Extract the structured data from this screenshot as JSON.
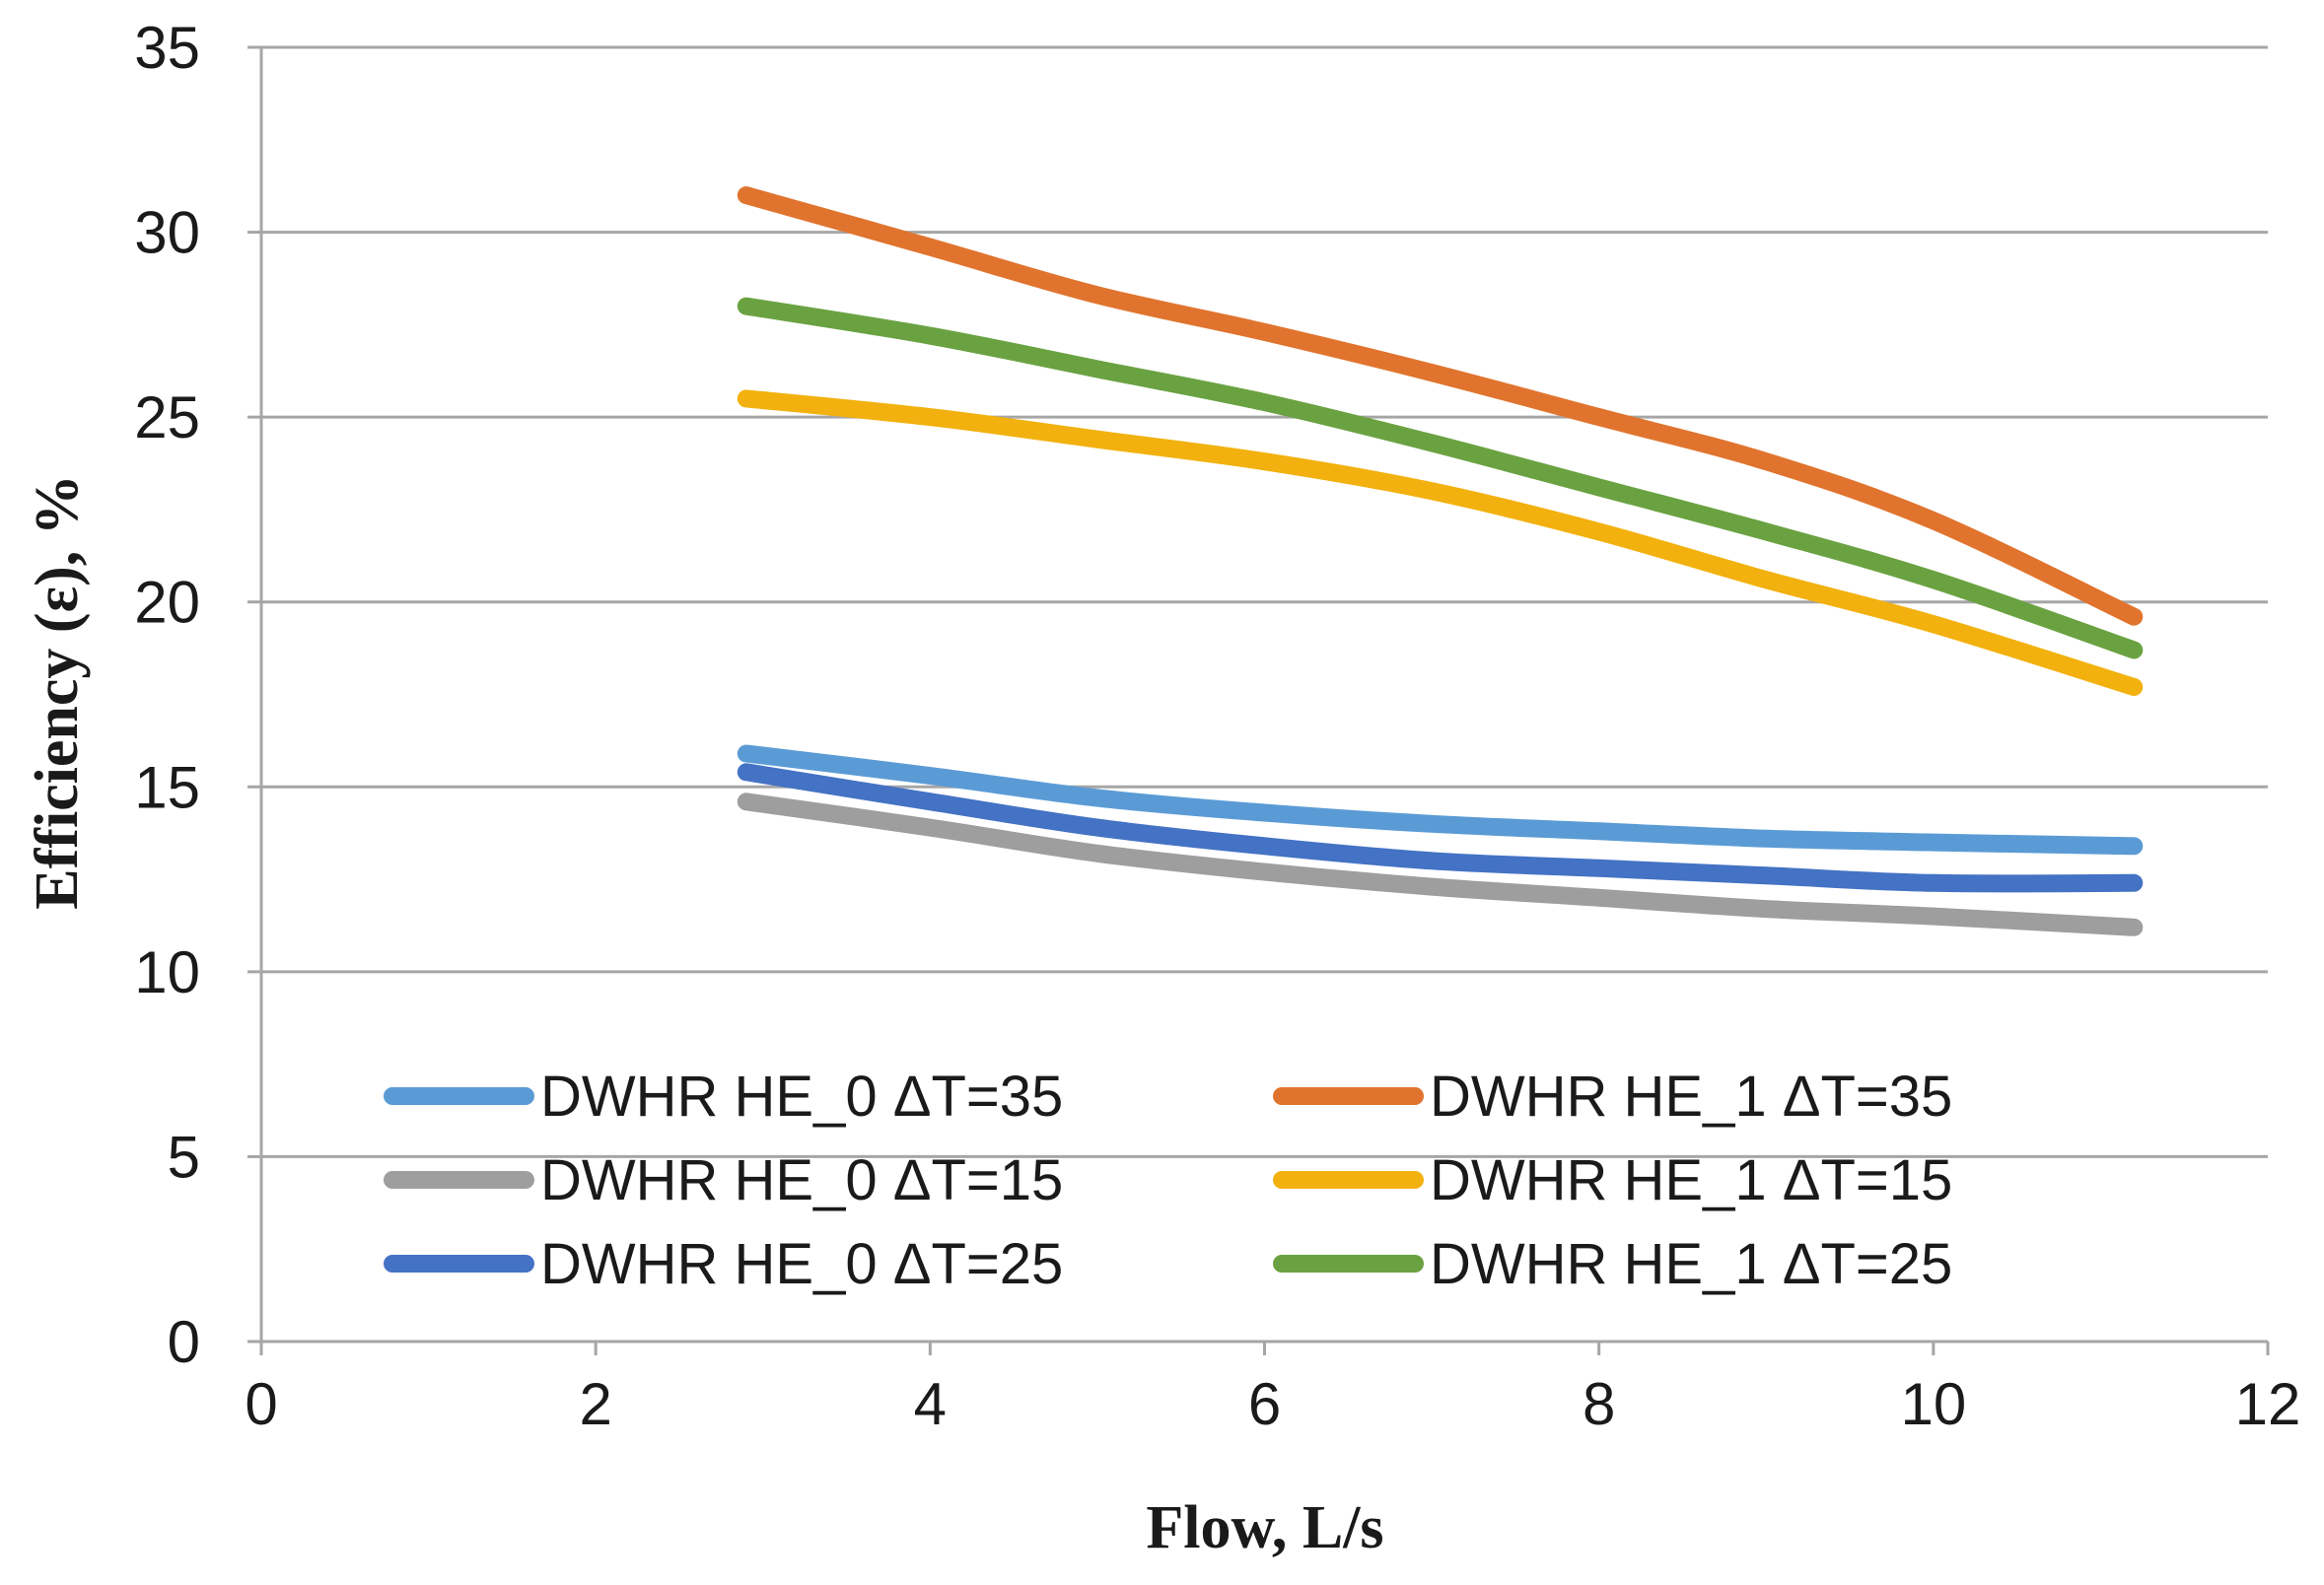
{
  "chart_data": {
    "type": "line",
    "title": "",
    "xlabel": "Flow, L/s",
    "ylabel": "Efficiency (ε), %",
    "xlim": [
      0,
      12
    ],
    "ylim": [
      0,
      35
    ],
    "xticks": [
      0,
      2,
      4,
      6,
      8,
      10,
      12
    ],
    "yticks": [
      0,
      5,
      10,
      15,
      20,
      25,
      30,
      35
    ],
    "grid": "horizontal",
    "legend_position": "bottom-inside",
    "x": [
      2.9,
      4.0,
      5.0,
      6.0,
      7.0,
      8.0,
      9.0,
      10.0,
      11.2
    ],
    "series": [
      {
        "name": "DWHR HE_0 ΔT=35",
        "color": "#5b9bd5",
        "values": [
          15.9,
          15.3,
          14.7,
          14.3,
          14.0,
          13.8,
          13.6,
          13.5,
          13.4
        ]
      },
      {
        "name": "DWHR HE_1 ΔT=35",
        "color": "#e0742e",
        "values": [
          31.0,
          29.6,
          28.3,
          27.3,
          26.2,
          25.0,
          23.8,
          22.2,
          19.6
        ]
      },
      {
        "name": "DWHR HE_0 ΔT=15",
        "color": "#9e9e9e",
        "values": [
          14.6,
          13.9,
          13.2,
          12.7,
          12.3,
          12.0,
          11.7,
          11.5,
          11.2
        ]
      },
      {
        "name": "DWHR HE_1 ΔT=15",
        "color": "#f2b10e",
        "values": [
          25.5,
          25.0,
          24.4,
          23.8,
          23.0,
          21.9,
          20.6,
          19.4,
          17.7
        ]
      },
      {
        "name": "DWHR HE_0 ΔT=25",
        "color": "#4472c4",
        "values": [
          15.4,
          14.6,
          13.9,
          13.4,
          13.0,
          12.8,
          12.6,
          12.4,
          12.4
        ]
      },
      {
        "name": "DWHR HE_1 ΔT=25",
        "color": "#6aa242",
        "values": [
          28.0,
          27.2,
          26.3,
          25.4,
          24.3,
          23.1,
          21.9,
          20.6,
          18.7
        ]
      }
    ]
  }
}
